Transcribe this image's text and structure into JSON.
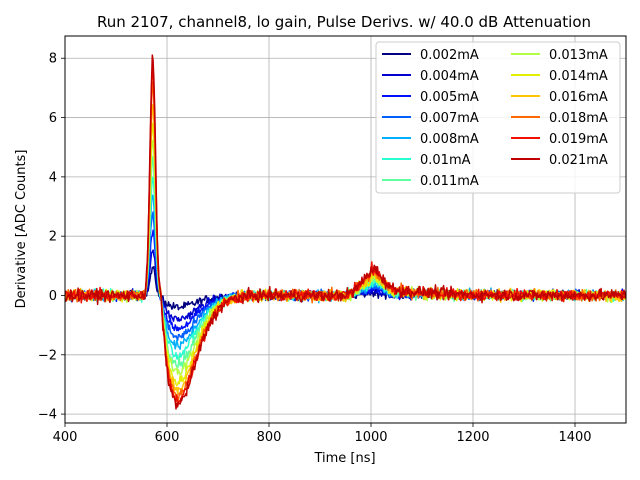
{
  "chart_data": {
    "type": "line",
    "title": "Run 2107, channel8, lo gain, Pulse Derivs. w/ 40.0 dB Attenuation",
    "xlabel": "Time [ns]",
    "ylabel": "Derivative [ADC Counts]",
    "xlim": [
      400,
      1500
    ],
    "ylim": [
      -4.3,
      8.75
    ],
    "xticks": [
      400,
      600,
      800,
      1000,
      1200,
      1400
    ],
    "yticks": [
      -4,
      -2,
      0,
      2,
      4,
      6,
      8
    ],
    "grid": true,
    "legend_position": "top-right",
    "legend_columns": 2,
    "series": [
      {
        "name": "0.002mA",
        "color": "#00007f",
        "peak": 0.9,
        "trough": -0.4
      },
      {
        "name": "0.004mA",
        "color": "#0000d0",
        "peak": 1.6,
        "trough": -0.8
      },
      {
        "name": "0.005mA",
        "color": "#0010ff",
        "peak": 2.2,
        "trough": -1.1
      },
      {
        "name": "0.007mA",
        "color": "#0060ff",
        "peak": 2.8,
        "trough": -1.4
      },
      {
        "name": "0.008mA",
        "color": "#00b0ff",
        "peak": 3.4,
        "trough": -1.7
      },
      {
        "name": "0.01mA",
        "color": "#26ffd0",
        "peak": 4.0,
        "trough": -2.0
      },
      {
        "name": "0.011mA",
        "color": "#5dffa0",
        "peak": 4.6,
        "trough": -2.3
      },
      {
        "name": "0.013mA",
        "color": "#b0ff46",
        "peak": 5.2,
        "trough": -2.6
      },
      {
        "name": "0.014mA",
        "color": "#e0f000",
        "peak": 5.8,
        "trough": -2.9
      },
      {
        "name": "0.016mA",
        "color": "#ffc400",
        "peak": 6.5,
        "trough": -3.15
      },
      {
        "name": "0.018mA",
        "color": "#ff6800",
        "peak": 7.2,
        "trough": -3.35
      },
      {
        "name": "0.019mA",
        "color": "#f01000",
        "peak": 7.7,
        "trough": -3.5
      },
      {
        "name": "0.021mA",
        "color": "#c00000",
        "peak": 8.1,
        "trough": -3.65
      }
    ],
    "pulse_shape": {
      "baseline": 0.0,
      "peak_time": 572,
      "trough_time": 622,
      "bump_time": 1000,
      "bump_height_max": 0.7,
      "noise_amplitude": 0.12
    }
  }
}
